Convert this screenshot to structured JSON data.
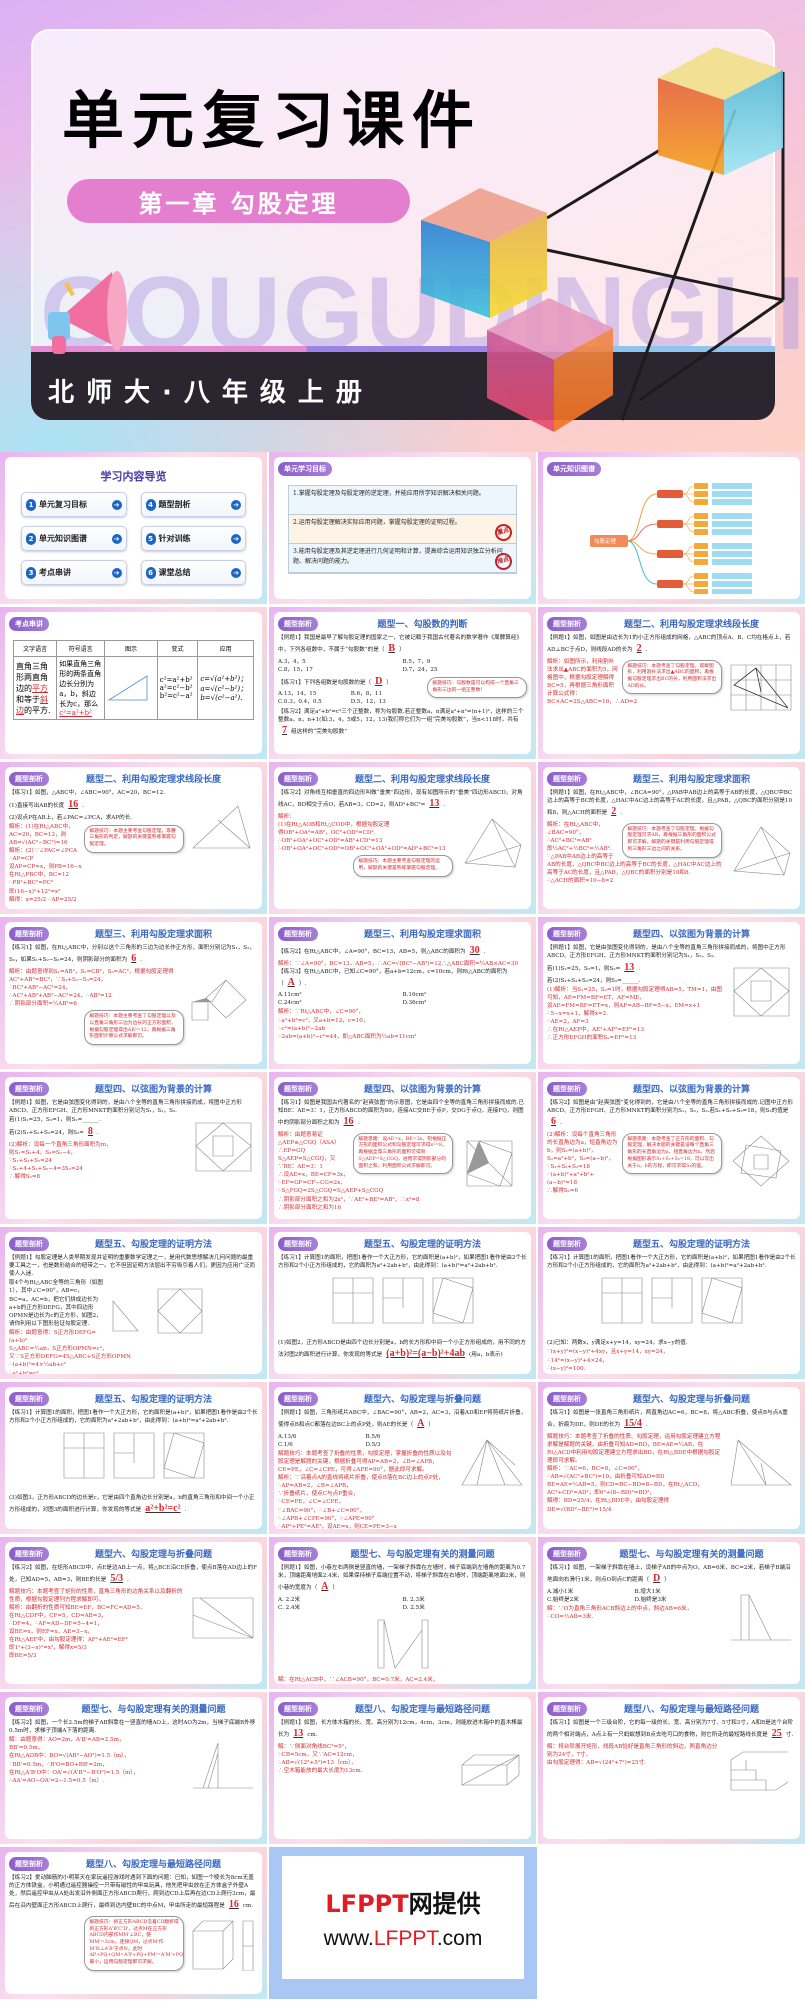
{
  "header": {
    "title": "单元复习课件",
    "chapter": "第一章 勾股定理",
    "watermark": "GOUGUDINGLI",
    "edition": "北师大·八年级上册"
  },
  "colors": {
    "tag": "#8b5fc9",
    "title": "#3a68c0",
    "answer": "#d8262b",
    "nav": "#1a66c7"
  },
  "slides": [
    {
      "kind": "nav",
      "title": "学习内容导览",
      "items": [
        {
          "n": "1",
          "label": "单元复习目标"
        },
        {
          "n": "4",
          "label": "题型剖析"
        },
        {
          "n": "2",
          "label": "单元知识图谱"
        },
        {
          "n": "5",
          "label": "针对训练"
        },
        {
          "n": "3",
          "label": "考点串讲"
        },
        {
          "n": "6",
          "label": "课堂总结"
        }
      ]
    },
    {
      "kind": "goals",
      "tag": "单元学习目标",
      "goals": [
        {
          "text": "1.掌握勾股定理及勾股定理的逆定理，并能应用所学知识解决相关问题。",
          "stamp": ""
        },
        {
          "text": "2.运用勾股定理解决实际应用问题，掌握勾股定理的证明过程。",
          "stamp": "重点"
        },
        {
          "text": "3.能用勾股定理及其逆定理进行几何证明和计算，提高综合运用知识独立分析问题、解决问题的能力。",
          "stamp": "难点"
        }
      ]
    },
    {
      "kind": "map",
      "tag": "单元知识图谱",
      "root": "勾股定理"
    },
    {
      "kind": "table",
      "tag": "考点串讲",
      "headers": [
        "文字语言",
        "符号语言",
        "图示",
        "变式",
        "应用"
      ],
      "c1": {
        "pre": "直角三角形两直角边的",
        "a1": "平方",
        "mid": "和等于",
        "a2": "斜边",
        "post": "的平方."
      },
      "c2": {
        "pre": "如果直角三角形的两条直角边长分别为a，b，斜边长为c，那么",
        "a": "c²=a²+b²"
      },
      "c4": [
        "c²=a²+b²",
        "a²=c²−b²",
        "b²=c²−a²"
      ],
      "c5": [
        "c=√(a²+b²)；",
        "a=√(c²−b²)；",
        "b=√(c²−a²)."
      ]
    },
    {
      "kind": "problem",
      "tag": "题型剖析",
      "title": "题型一、勾股数的判断",
      "fig": "",
      "blocks": [
        {
          "type": "q",
          "pre": "【例题1】我国是最早了解勾股定理的国家之一，它被记载于我国古代著名的数学著作《周髀算经》中，下列各组数中，不属于“勾股数”的是（",
          "ans": "B",
          "post": "）"
        },
        {
          "type": "opt",
          "items": [
            "A.3，4，5",
            "B.5，7，9",
            "C.8，15，17",
            "D.7，24，25"
          ]
        },
        {
          "type": "tip",
          "text": "解题技巧：勾股数是可以构成一个直角三角形三边的一组正整数！"
        },
        {
          "type": "q",
          "pre": "【练习1】下列各组数是勾股数的是（",
          "ans": "D",
          "post": "）"
        },
        {
          "type": "opt",
          "items": [
            "A.13，14，15",
            "B.6，8，11",
            "C.0.3，0.4，0.5",
            "D.5，12，13"
          ]
        },
        {
          "type": "q",
          "pre": "【练习2】满足a²+b²=c²三个正整数，称为勾股数.若正整数a，n满足a²+n²=(n+1)²，这样的三个整数a，n，n+1(如:3，4，5或5，12，13)我们称它们为一组“完美勾股数”，当n<118时，共有",
          "ans": "7",
          "post": "组这样的“完美勾股数”"
        }
      ]
    },
    {
      "kind": "problem",
      "tag": "题型剖析",
      "title": "题型二、利用勾股定理求线段长度",
      "fig": "grid",
      "blocks": [
        {
          "type": "q",
          "pre": "【例题1】如图，如图是由边长为1的小正方形组成的网格，△ABC的顶点A、B、C均在格点上，若AD⊥BC于点D，则线段AD的长为",
          "ans": "2",
          "post": "."
        },
        {
          "type": "tip",
          "text": "解题技巧：本题考查了勾股定理，观察图形，利用割补法求出▲ABC的面积，再根据勾股定理求出BC的长，利用面积法求出AD的长。"
        },
        {
          "type": "sol",
          "lines": [
            "解析：如图所示，利用割补法求出▲ABC的面积为5，网格图中，根据勾股定理解得BC=5，再根据三角形面积计算公式得：BC×AC=2S△ABC=10，∴AD=2"
          ]
        }
      ]
    },
    {
      "kind": "problem",
      "tag": "题型剖析",
      "title": "题型二、利用勾股定理求线段长度",
      "fig": "triangle",
      "blocks": [
        {
          "type": "q",
          "pre": "【练习1】如图，△ABC中，∠ABC=90°，AC=20，BC=12.",
          "ans": "",
          "post": ""
        },
        {
          "type": "q",
          "pre": "(1)直接写出AB的长度",
          "ans": "16",
          "post": "."
        },
        {
          "type": "q",
          "pre": "(2)设点P在AB上，若∠PAC=∠PCA，求AP的长.",
          "ans": "",
          "post": ""
        },
        {
          "type": "tip",
          "text": "解题技巧：本题主要考查勾股定理，等腰三角形的判定，解题的关键是熟练掌握勾股定理。"
        },
        {
          "type": "sol",
          "lines": [
            "解析：(1)在Rt△ABC中，AC=20，BC=12，则AB=√(AC²−BC²)=16",
            "解析：(2)∵∠PAC=∠PCA ∴AP=CP",
            "设AP=CP=x，则PB=16−x",
            "在Rt△PBC中，BC=12",
            "∴PB²+BC²=PC²",
            "即(16−x)²+12²=x²",
            "解得：x=25/2 ∴AP=25/2"
          ]
        }
      ]
    },
    {
      "kind": "problem",
      "tag": "题型剖析",
      "title": "题型二、利用勾股定理求线段长度",
      "fig": "quad",
      "blocks": [
        {
          "type": "q",
          "pre": "【练习2】对角线互相垂直的四边形叫做“垂美”四边形，现有如图所示的“垂美”四边形ABCD，对角线AC，BD相交于点O，若AB=3，CD=2，则AD²+BC²=",
          "ans": "13",
          "post": "."
        },
        {
          "type": "sol",
          "lines": [
            "解析：",
            "(1)在Rt△AOB和Rt△COD中，根据勾股定理",
            "得OB²+OA²=AB²，OC²+OD²=CD².",
            "∴OB²+OA²+OC²+OD²=AB²+CD²=13",
            "∴OB²+OA²+OC²+OD²=OB²+OC²+OA²+OD²=AD²+BC²=13"
          ]
        },
        {
          "type": "tip",
          "text": "解题技巧：本题主要考查勾股定理的运用，解题的关键是熟练掌握勾股定理。"
        }
      ]
    },
    {
      "kind": "problem",
      "tag": "题型剖析",
      "title": "题型三、利用勾股定理求面积",
      "fig": "quad",
      "blocks": [
        {
          "type": "q",
          "pre": "【例题1】如图，在Rt△ABC中，∠BCA=90°，△PAB中AB边上的高等于AB的长度，△QBC中BC边上的高等于BC的长度，△HAC中AC边上的高等于AC的长度，且△PAB，△QBC的面积分别是10和8，则△ACH的面积是",
          "ans": "2",
          "post": "."
        },
        {
          "type": "tip",
          "text": "解题技巧：本题考查了勾股定理，根据勾股定理可求AB，再根据三角形的面积公式即可求解，解题的关键是利用勾股定理得到三角形三边之间的关系。"
        },
        {
          "type": "sol",
          "lines": [
            "解析：在Rt△ABC中，∠BAC=90°，",
            "∴AC²+BC²=AB²",
            "即½AC²+½BC²=½AB².",
            "∵△PAB中AB边上的高等于AB的长度，△QBC中BC边上的高等于BC的长度，△HAC中AC边上的高等于AC的长度，且△PAB，△QBC的面积分别是10和8.",
            "∴△ACH的面积=10−8=2"
          ]
        }
      ]
    },
    {
      "kind": "problem",
      "tag": "题型剖析",
      "title": "题型三、利用勾股定理求面积",
      "fig": "squares3",
      "blocks": [
        {
          "type": "q",
          "pre": "【练习1】如图，在Rt△ABC中，分别以这个三角形的三边为边长作正方形，面积分别记为S₁，S₂，S₃，如果S₁+S₂−S₃=24，则阴影部分的面积为",
          "ans": "6",
          "post": "."
        },
        {
          "type": "sol",
          "lines": [
            "解析：由题意得到S₁=AB²，S₂=CB²，S₃=AC²，根据勾股定理得AC²+AB²=BC²，∵S₁+S₂−S₃=24，",
            "∴BC²+AB²−AC²=24，",
            "∴AC²+AB²+AB²−AC²=24，∴AB²=12",
            "∴阴影部分面积=½AB²=6"
          ]
        },
        {
          "type": "tip",
          "text": "解题技巧：本题主要考查了勾股定理以及以直角三角形三边为边长的正方形面积，根据勾股定理得出AB²=12，再根据三角形面积计算公式求解即可。"
        }
      ]
    },
    {
      "kind": "problem",
      "tag": "题型剖析",
      "title": "题型三、利用勾股定理求面积",
      "fig": "",
      "blocks": [
        {
          "type": "q",
          "pre": "【练习2】在Rt△ABC中，∠A=90°，BC=13，AB=5，则△ABC的面积为",
          "ans": "30",
          "post": "."
        },
        {
          "type": "sol",
          "lines": [
            "解析：∵∠A=90°，BC=13，AB=5，∴AC=√(BC²−AB²)=12∴△ABC面积=½AB×AC=30"
          ]
        },
        {
          "type": "q",
          "pre": "【练习3】在Rt△ABC中，已知∠C=90°，若a+b=12cm，c=10cm，则Rt△ABC的面积为（",
          "ans": "A",
          "post": "）."
        },
        {
          "type": "opt",
          "items": [
            "A.11cm²",
            "B.16cm²",
            "C.24cm²",
            "D.36cm²"
          ]
        },
        {
          "type": "sol",
          "lines": [
            "解析：∵Rt△ABC中，∠C=90°，",
            "∴a²+b²=c²，又a+b=12，c=10，",
            "∴c²=(a+b)²−2ab",
            "∴2ab=(a+b)²−c²=44，即△ABC面积为½ab=11cm²"
          ]
        }
      ]
    },
    {
      "kind": "problem",
      "tag": "题型剖析",
      "title": "题型四、以弦图为背景的计算",
      "fig": "xian",
      "blocks": [
        {
          "type": "q",
          "pre": "【例题1】如图，它是由弦图变化得到的，是由八个全等的直角三角形拼接而成的，将图中正方形ABCD、正方形EFGH、正方形MNKT的面积分别记为S₁，S₂，S₃.",
          "ans": "",
          "post": ""
        },
        {
          "type": "q",
          "pre": "若(1)S₁=25，S₃=1，则S₂=",
          "ans": "13",
          "post": "."
        },
        {
          "type": "q",
          "pre": "若(2)S₁+S₂+S₃=24，则S₂=______.",
          "ans": "",
          "post": ""
        },
        {
          "type": "sol",
          "lines": [
            "(1)解析：当S₁=25，S₃=1时，根据勾股定理得AB=5，TM=1，由图可知，AE=FM=BF=ET，AF=ME，",
            "设AE=FM=BF=ET=x，则AF=AB−BF=5−x，EM=x+1",
            "∴5−x=x+1，解得x=2.",
            "∴AE=2，AF=3",
            "∴在Rt△AEF中，AE²+AF²=EF²=13",
            "∴正方形EFGH的面积S₂=EF²=13"
          ]
        }
      ]
    },
    {
      "kind": "problem",
      "tag": "题型剖析",
      "title": "题型四、以弦图为背景的计算",
      "fig": "xian",
      "blocks": [
        {
          "type": "q",
          "pre": "【例题1】如图，它是由弦图变化得到的，是由八个全等的直角三角形拼接而成，将图中正方形ABCD、正方形EFGH、正方形MNKT的面积分别记为S₁，S₂，S₃.",
          "ans": "",
          "post": ""
        },
        {
          "type": "q",
          "pre": "若(1)S₁=25，S₃=1，则S₂=______.",
          "ans": "",
          "post": ""
        },
        {
          "type": "q",
          "pre": "若(2)S₁+S₂+S₃=24，则S₂=",
          "ans": "8",
          "post": "."
        },
        {
          "type": "sol",
          "lines": [
            "(2)解析：设每一个直角三角形面积为m，",
            "则S₁=S₂+4，S₃=S₂−4，",
            "∵S₁+S₂+S₃=24",
            "∴S₂+4+S₂+S₂−4=3S₂=24",
            "∴解得S₂=8"
          ]
        }
      ]
    },
    {
      "kind": "problem",
      "tag": "题型剖析",
      "title": "题型四、以弦图为背景的计算",
      "fig": "zhao",
      "blocks": [
        {
          "type": "q",
          "pre": "【练习1】如图是我国古代著名的“赵爽弦图”的示意图，它是由四个全等的直角三角形拼接而成的.已知BE：AE=3：1，正方形ABCD的面积为80，连接AC交BE于点P，交DG于点Q，连接FQ，则图中的阴影部分面积之和为",
          "ans": "16",
          "post": "."
        },
        {
          "type": "tip",
          "text": "解题思路：设AE=x，BE=3x，则根据正方形的面积公式和勾股定理可求得x²=8，再根据全等三角形的面积可得到S△AEP=S△CGQ，进而求得阴影部分的面积之和，利用面积公式求解即可。"
        },
        {
          "type": "sol",
          "lines": [
            "解析：由题意易证△AEP≌△CGQ（ASA）∴EP=GQ",
            "S△AEP=S△CGQ，又∵BE：AE=3：1",
            "∴设AE=x，BE=CF=3x，",
            "∴EF=GF=CF−CG=2x，",
            "∴S△FGQ=2S△CGQ=S△AEP+S△CGQ",
            "∴阴影部分面积之和为2x²，∵AE²+BE²=AB²，∴x²=8",
            "∴阴影部分面积之和为16"
          ]
        }
      ]
    },
    {
      "kind": "problem",
      "tag": "题型剖析",
      "title": "题型四、以弦图为背景的计算",
      "fig": "xian2",
      "blocks": [
        {
          "type": "q",
          "pre": "【练习2】如图是由“赵爽弦图”变化得到的，它是由八个全等的直角三角形拼接而成的.记图中正方形ABCD、正方形EFGH、正方形MNKT的面积分别为S₁，S₂，S₃.若S₁+S₂+S₃=18，则S₂的值是",
          "ans": "6",
          "post": "."
        },
        {
          "type": "tip",
          "text": "解题思路：本题考查了正方形的面积、勾股定理，解决本题的关键是设每个直角三角形的长直角边为a，短直角边为b，然后根据图形表示S₁+S₂+S₃=18，可以写出关于a，b的方程，即可求得S₂的值。"
        },
        {
          "type": "sol",
          "lines": [
            "(2)解析：设每个直角三角形的长直角边为a，短直角边为b，则S₁=(a+b)²，S₂=a²+b²，S₃=(a−b)²，",
            "∵S₁+S₂+S₃=18",
            "∴(a+b)²+a²+b²+(a−b)²=18",
            "∴解得S₂=6"
          ]
        }
      ]
    },
    {
      "kind": "problem",
      "tag": "题型剖析",
      "title": "题型五、勾股定理的证明方法",
      "fig": "proof",
      "blocks": [
        {
          "type": "q",
          "pre": "【例题1】勾股定理是人类早期发现并证明的重要数学定理之一，是用代数思想解决几何问题的最重要工具之一，也是数形结合的纽带之一。它不但因证明方法层出不穷吸引着人们，更因为应用广泛而使人入迷.",
          "ans": "",
          "post": ""
        },
        {
          "type": "q",
          "pre": "取4个与Rt△ABC全等的三角形（如图1），其中∠C=90°，AB=c，BC=a，AC=b，把它们拼成边长为a+b的正方形DEFG，其中四边形OPMN是边长为c的正方形，如图2，请你利用以下图形验证勾股定理.",
          "ans": "",
          "post": ""
        },
        {
          "type": "sol",
          "lines": [
            "解析：由题意得：S正方形DEFG=(a+b)²",
            "S△ABC=½ab，S正方形OPMN=c²，",
            "又∵S正方形DEFG=4S△ABC+S正方形OPMN",
            "∴(a+b)²=4×½ab+c²",
            "∴a²+b²=c²"
          ]
        }
      ]
    },
    {
      "kind": "problem",
      "tag": "题型剖析",
      "title": "题型五、勾股定理的证明方法",
      "fig": "three",
      "blocks": [
        {
          "type": "q",
          "pre": "【练习1】计算图1的面积，把图1看作一个大正方形，它的面积是(a+b)²，如果把图1看作是由2个长方形和2个小正方形组成的，它的面积为a²+2ab+b²，由此得到：(a+b)²=a²+2ab+b².",
          "ans": "",
          "post": ""
        },
        {
          "type": "q",
          "pre": "(1)如图2，正方形ABCD是由四个边长分别是a，b的长方形和中间一个小正方形组成的，用不同的方法对图2的面积进行计算，你发现的等式是",
          "ans": "(a+b)²=(a−b)²+4ab",
          "post": "(用a，b表示)"
        }
      ]
    },
    {
      "kind": "problem",
      "tag": "题型剖析",
      "title": "题型五、勾股定理的证明方法",
      "fig": "three",
      "blocks": [
        {
          "type": "q",
          "pre": "【练习1】计算图1的面积，把图1看作一个大正方形，它的面积是(a+b)²，如果把图1看作是由2个长方形和2个小正方形组成的，它的面积为a²+2ab+b²，由此得到：(a+b)²=a²+2ab+b².",
          "ans": "",
          "post": ""
        },
        {
          "type": "q",
          "pre": "(2)已知：两数x，y满足x+y=14，xy=24，求x−y的值.",
          "ans": "",
          "post": ""
        },
        {
          "type": "sol",
          "lines": [
            "∵(x+y)²=(x−y)²+4xy，且x+y=14，xy=24，",
            "∴14²=(x−y)²+4×24，",
            "∴(x−y)²=100."
          ]
        }
      ]
    },
    {
      "kind": "problem",
      "tag": "题型剖析",
      "title": "题型五、勾股定理的证明方法",
      "fig": "three",
      "blocks": [
        {
          "type": "q",
          "pre": "【练习1】计算图1的面积，把图1看作一个大正方形，它的面积是(a+b)²，如果把图1看作是由2个长方形和2个小正方形组成的，它的面积为a²+2ab+b²，由此得到：(a+b)²=a²+2ab+b².",
          "ans": "",
          "post": ""
        },
        {
          "type": "q",
          "pre": "(3)如图3，正方形ABCD的边长是c，它是由四个直角边长分别是a，b的直角三角形和中间一个小正方形组成的，对图3的面积进行计算，你发现的等式是",
          "ans": "a²+b²=c²",
          "post": "."
        }
      ]
    },
    {
      "kind": "problem",
      "tag": "题型剖析",
      "title": "题型六、勾股定理与折叠问题",
      "fig": "fold",
      "blocks": [
        {
          "type": "q",
          "pre": "【例题1】如图，三角形纸片ABC中，∠BAC=90°，AB=2，AC=3，沿着AD和EF将剪纸片折叠，使得点B和点C都落在边BC上的点P处，则AE的长是（",
          "ans": "A",
          "post": "）"
        },
        {
          "type": "opt",
          "items": [
            "A.13/6",
            "B.5/6",
            "C.1/6",
            "D.5/3"
          ]
        },
        {
          "type": "sol",
          "lines": [
            "解题技巧：本题考查了折叠的性质，勾股定理，掌握折叠的性质以及勾股定理是解题的关键，根据折叠可得AP=AB=2，∠B=∠APB，CE=PE，∠C=∠CPE，可得∠APE=90°，据此即可求解。",
            "解析：∵沿着点A的直线将纸片折叠，使点B落在BC边上的点P处，",
            "∴AP=AB=2，∠B=∠APB，",
            "∵折叠纸片，使点C与点P重合，",
            "∴CE=PE，∠C=∠CPE，",
            "∵∠BAC=90°，∴∠B+∠C=90°，",
            "∴∠APB+∠CPE=90°，∴∠APE=90°",
            "∴AP²+PE²=AE²，设AE=x，则CE=PE=3−x",
            "∴2²+(3−x)²=x²，解得x=13/6，AE=13/6"
          ]
        }
      ]
    },
    {
      "kind": "problem",
      "tag": "题型剖析",
      "title": "题型六、勾股定理与折叠问题",
      "fig": "fold2",
      "blocks": [
        {
          "type": "q",
          "pre": "【练习1】如图是一张直角三角形纸片，两直角边AC=6，BC=8，将△ABC折叠，使点B与点A重合，折痕为DE，则DE的长为",
          "ans": "15/4",
          "post": "."
        },
        {
          "type": "sol",
          "lines": [
            "解题技巧：本题考查了折叠的性质、勾股定理，运用勾股定理建立方程求解是解题的关键，由折叠可知AD=BD，BE=AE=½AB，在Rt△ACD中利用勾股定理建立方程求出BD，在Rt△BDE中根据勾股定理即可求解。",
            "解析：∵AC=6，BC=8，∠C=90°，",
            "∴AB=√(AC²+BC²)=10，由折叠可知AD=BD",
            "BE=AE=½AB=5，则CD=BC−BD=8−BD，在Rt△ACD，",
            "AC²+CD²=AD²，即6²+(8−BD)²=BD²，",
            "解得：BD=25/4，在Rt△BDE中，由勾股定理得",
            "DE=√(BD²−BE²)=15/4"
          ]
        }
      ]
    },
    {
      "kind": "problem",
      "tag": "题型剖析",
      "title": "题型六、勾股定理与折叠问题",
      "fig": "rect",
      "blocks": [
        {
          "type": "q",
          "pre": "【练习2】如图，在矩形ABCD中，点E是边AB上一点，将△BCE沿CE折叠，使点B落在AD边上的F处，已知AD=5，AB=3，则BE的长是",
          "ans": "5/3",
          "post": "."
        },
        {
          "type": "sol",
          "lines": [
            "解题技巧：本题考查了矩形的性质，直角三角形的边角关系以及翻折的性质，根据勾股定理列方程求解即可。",
            "解析：由翻折的性质可知BE=EF，BC=FC=AD=5，",
            "在Rt△CDF中，CF=5，CD=AB=3，",
            "∴DF=4，∴AF=AD−DF=5−4=1，",
            "设BE=x，则EF=x，AE=3−x，",
            "在Rt△AEF中，由勾股定理得：AF²+AE²=EF²",
            "即1²+(3−x)²=x²，解得x=5/3",
            "即BE=5/3"
          ]
        }
      ]
    },
    {
      "kind": "problem",
      "tag": "题型剖析",
      "title": "题型七、与勾股定理有关的测量问题",
      "fig": "alley",
      "blocks": [
        {
          "type": "q",
          "pre": "【例题1】如图，小巷左右两侧是竖直的墙，一架梯子斜靠在左墙时，梯子底端到左墙角的距离为0.7米，顶端距离地面2.4米，如果保持梯子底端位置不动，将梯子斜靠在右墙时，顶端距离地面2米，则小巷的宽度为（",
          "ans": "A",
          "post": "）"
        },
        {
          "type": "opt",
          "items": [
            "A. 2.2米",
            "B. 2.3米",
            "C. 2.4米",
            "D. 2.5米"
          ]
        },
        {
          "type": "sol",
          "lines": [
            "解：在Rt△ACB中，∵∠ACB=90°，BC=0.7米，AC=2.4米，",
            "∴AB²=0.7²+2.4²=6.25.",
            "在Rt△A'BD中，∵∠A'DB=90°，A'D=2米，BD²+A'D²=A'B²，",
            "∴BD²+2²=6.25，∴BD²=2.25，",
            "∵BD>0，∴BD=1.5米，∴CD=BC+BD=0.7+1.5=2.2米"
          ]
        }
      ]
    },
    {
      "kind": "problem",
      "tag": "题型剖析",
      "title": "题型七、与勾股定理有关的测量问题",
      "fig": "ladder",
      "blocks": [
        {
          "type": "q",
          "pre": "【练习1】如图，一架梯子斜靠在墙上，设梯子AB的中点为O，AB=6米，BC=2米，若梯子B端沿地面向右滑行1米，则点O到点C的距离（",
          "ans": "D",
          "post": "）"
        },
        {
          "type": "opt",
          "items": [
            "A.减小1米",
            "B.增大1米",
            "C.始终是2米",
            "D.始终是3米"
          ]
        },
        {
          "type": "sol",
          "lines": [
            "解：∵O为直角三角形ACB斜边上的中点，斜边AB=6米，",
            "∴CO=½AB=3米."
          ]
        }
      ]
    },
    {
      "kind": "problem",
      "tag": "题型剖析",
      "title": "题型七、与勾股定理有关的测量问题",
      "fig": "ladder2",
      "blocks": [
        {
          "type": "q",
          "pre": "【练习2】如图，一个长2.5m的梯子AB斜靠在一竖直的墙AO上，这时AO为2m，当梯子底端B外移0.5m时，求梯子顶端A下落的距离.",
          "ans": "",
          "post": ""
        },
        {
          "type": "sol",
          "lines": [
            "解：由题意得：AO=2m，A'B'=AB=2.5m，",
            "BB'=0.5m，",
            "在Rt△AOB中：BO=√(AB²−AO²)=1.5（m），",
            "∵BB'=0.5m，∴B'O=BO+BB'=2m，",
            "在Rt△A'B'O中：OA'=√(A'B'²−B'O²)=1.5（m），",
            "∴AA'=AO−OA'=2−1.5=0.5（m）."
          ]
        }
      ]
    },
    {
      "kind": "problem",
      "tag": "题型剖析",
      "title": "题型八、勾股定理与最短路径问题",
      "fig": "box",
      "blocks": [
        {
          "type": "q",
          "pre": "【例题1】如图，长方体木箱的长、宽、高分别为12cm，4cm，3cm，则能放进木箱中的直木棒最长为",
          "ans": "13",
          "post": "cm."
        },
        {
          "type": "sol",
          "lines": [
            "解：∵侧面对角线BC²=5²，",
            "∴CB=5cm，又∵AC=12cm，",
            "∴AB=√(12²+5²)=13（cm），",
            "∴空木箱能放的最大长度为13cm."
          ]
        }
      ]
    },
    {
      "kind": "problem",
      "tag": "题型剖析",
      "title": "题型八、勾股定理与最短路径问题",
      "fig": "stairs",
      "blocks": [
        {
          "type": "q",
          "pre": "【练习1】如图是一个三级台阶，它的每一级的长、宽、高分别为7寸、5寸和3寸，A和B是这个台阶的两个相对端点，A点上有一只蚂蚁想到B点去吃可口的食物，则它所走的最短路线长度是",
          "ans": "25",
          "post": "寸."
        },
        {
          "type": "sol",
          "lines": [
            "解：将台阶展开矩形，线段AB恰好是直角三角形的斜边，两直角边分别为24寸，7寸，",
            "由勾股定理得：AB=√(24²+7²)=25寸."
          ]
        }
      ]
    },
    {
      "kind": "problem",
      "tag": "题型剖析",
      "title": "题型八、勾股定理与最短路径问题",
      "fig": "cube",
      "blocks": [
        {
          "type": "q",
          "pre": "【练习2】爱动脑筋的小明某天在家玩遥控游戏时遇到下面的问题：已知，如图一个棱长为8cm无盖的正方体铁盒，小明通过遥控器操控一只带有磁性的甲虫玩具，他先把甲虫放在正方体盒子外壁A处，然后遥控甲虫从A处出发沿外侧面正方形ABCD爬行，爬到边CD上后再在边CD上爬行3cm，最后在沿内壁面正方形ABCD上爬行，最终到达内壁BC的中点M，甲虫所走的最短路程是",
          "ans": "16",
          "post": "cm."
        },
        {
          "type": "tip",
          "text": "解题技巧：将正方形ABCD沿着CD翻折得到正方形A'B'C'D'，过点M在正方形ABCD内部作MM'⊥BC，使MM'=3cm，连接QM，过点M'作M'N⊥A'B'于点N，此时AP+PQ+QM=A'P+PQ+PM'=A'M'+PQ最小，运用勾股定理即可求解。"
        }
      ]
    },
    {
      "kind": "ad",
      "line1_red": "LFPPT",
      "line1_rest": "网提供",
      "line2_pre": "www.",
      "line2_red": "LFPPT",
      "line2_post": ".com"
    }
  ]
}
